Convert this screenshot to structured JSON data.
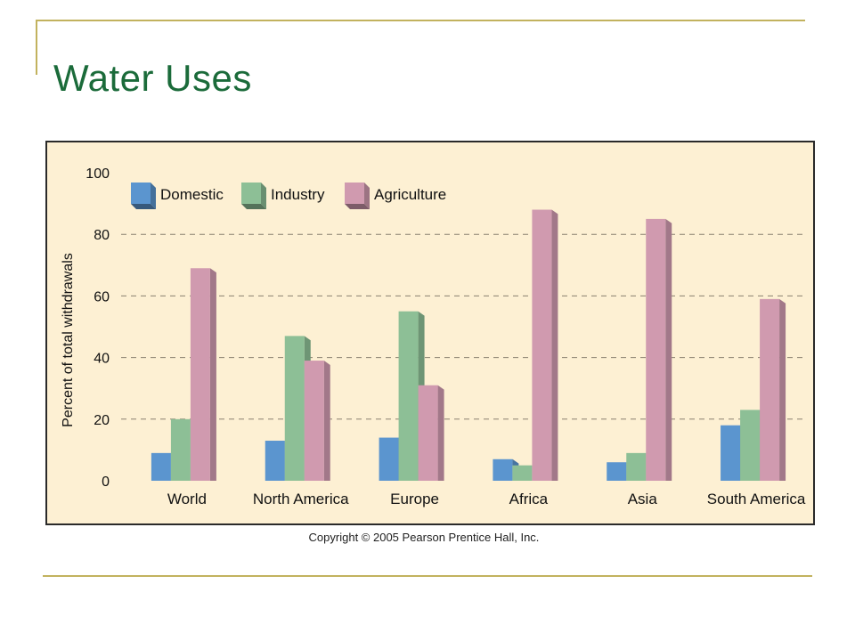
{
  "slide": {
    "title": "Water Uses",
    "copyright": "Copyright © 2005 Pearson Prentice Hall, Inc."
  },
  "colors": {
    "title": "#1b6b3a",
    "chart_background": "#fdf0d3",
    "accent_lines": "#c2b25e",
    "domestic": "#5b95cf",
    "industry": "#8dbf96",
    "agriculture": "#d09aaf"
  },
  "chart_data": {
    "type": "bar",
    "title": "",
    "xlabel": "",
    "ylabel": "Percent of total withdrawals",
    "ylim": [
      0,
      100
    ],
    "yticks": [
      0,
      20,
      40,
      60,
      80,
      100
    ],
    "grid": true,
    "legend_position": "top-left",
    "categories": [
      "World",
      "North America",
      "Europe",
      "Africa",
      "Asia",
      "South America"
    ],
    "series": [
      {
        "name": "Domestic",
        "color": "#5b95cf",
        "values": [
          9,
          13,
          14,
          7,
          6,
          18
        ]
      },
      {
        "name": "Industry",
        "color": "#8dbf96",
        "values": [
          20,
          47,
          55,
          5,
          9,
          23
        ]
      },
      {
        "name": "Agriculture",
        "color": "#d09aaf",
        "values": [
          69,
          39,
          31,
          88,
          85,
          59
        ]
      }
    ]
  }
}
